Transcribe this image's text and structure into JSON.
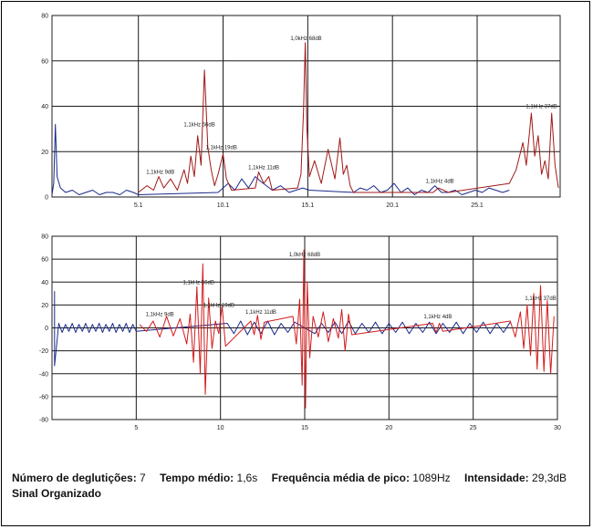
{
  "chart_data": [
    {
      "type": "line",
      "title": "",
      "xlabel": "",
      "ylabel": "",
      "xlim": [
        0,
        30
      ],
      "ylim": [
        0,
        80
      ],
      "x_ticks": [
        {
          "value": 5.1,
          "label": "5.1"
        },
        {
          "value": 10.1,
          "label": "10.1"
        },
        {
          "value": 15.1,
          "label": "15.1"
        },
        {
          "value": 20.1,
          "label": "20.1"
        },
        {
          "value": 25.1,
          "label": "25.1"
        }
      ],
      "y_ticks": [
        0,
        20,
        40,
        60,
        80
      ],
      "grid": true,
      "series": [
        {
          "color": "#1a2a8c",
          "x": [
            0,
            0.1,
            0.2,
            0.3,
            0.5,
            0.8,
            1.2,
            1.6,
            2.0,
            2.4,
            2.8,
            3.2,
            3.6,
            4.0,
            4.4,
            4.8,
            5.1,
            9.8,
            10.1,
            10.4,
            10.8,
            11.2,
            11.6,
            12.0,
            12.3,
            13.0,
            13.5,
            14.0,
            14.4,
            14.8,
            15.2,
            17.8,
            18.2,
            18.6,
            19.0,
            19.4,
            19.8,
            20.2,
            20.6,
            21.0,
            21.4,
            21.8,
            22.2,
            22.6,
            23.0,
            23.4,
            23.8,
            24.2,
            24.6,
            25.0,
            25.4,
            25.8,
            26.2,
            26.6,
            27.0
          ],
          "y": [
            1,
            6,
            32,
            9,
            4,
            2,
            3,
            1,
            2,
            3,
            1,
            2,
            2,
            1,
            3,
            2,
            1,
            2,
            4,
            6,
            3,
            8,
            4,
            9,
            7,
            3,
            5,
            2,
            3,
            4,
            3,
            2,
            4,
            3,
            5,
            2,
            3,
            6,
            2,
            4,
            1,
            3,
            2,
            5,
            2,
            2,
            3,
            1,
            2,
            3,
            2,
            4,
            3,
            2,
            3
          ]
        },
        {
          "color": "#a01818",
          "x": [
            5.1,
            5.6,
            6.0,
            6.3,
            6.6,
            7.0,
            7.4,
            7.8,
            8.0,
            8.2,
            8.4,
            8.6,
            8.8,
            9.0,
            9.2,
            9.4,
            9.6,
            9.8,
            10.1,
            10.3,
            10.6,
            12.0,
            12.2,
            12.5,
            12.8,
            13.0,
            14.5,
            14.7,
            14.85,
            14.95,
            15.05,
            15.2,
            15.5,
            15.9,
            16.3,
            16.7,
            17.0,
            17.2,
            17.4,
            17.6,
            17.8,
            22.5,
            22.8,
            23.1,
            23.4,
            27.0,
            27.4,
            27.8,
            28.0,
            28.3,
            28.5,
            28.7,
            28.9,
            29.1,
            29.3,
            29.5,
            29.7,
            29.9
          ],
          "y": [
            2,
            5,
            3,
            9,
            4,
            8,
            3,
            12,
            6,
            18,
            9,
            27,
            14,
            56,
            22,
            12,
            5,
            10,
            19,
            8,
            3,
            4,
            11,
            6,
            9,
            3,
            4,
            10,
            38,
            68,
            30,
            9,
            16,
            6,
            21,
            8,
            26,
            10,
            14,
            5,
            2,
            2,
            4,
            3,
            2,
            6,
            12,
            24,
            14,
            37,
            18,
            27,
            10,
            16,
            8,
            37,
            14,
            4
          ]
        }
      ],
      "annotations": [
        {
          "x": 6.4,
          "y": 9,
          "text": "1,1kHz 9dB"
        },
        {
          "x": 8.7,
          "y": 30,
          "text": "1,1kHz 56dB"
        },
        {
          "x": 10.0,
          "y": 20,
          "text": "1,1kHz 19dB"
        },
        {
          "x": 12.5,
          "y": 11,
          "text": "1,1kHz 11dB"
        },
        {
          "x": 15.0,
          "y": 68,
          "text": "1,0kHz 68dB"
        },
        {
          "x": 22.9,
          "y": 5,
          "text": "1,1kHz 4dB"
        },
        {
          "x": 28.9,
          "y": 38,
          "text": "1,1kHz 37dB"
        }
      ]
    },
    {
      "type": "line",
      "title": "",
      "xlabel": "",
      "ylabel": "",
      "xlim": [
        0,
        30
      ],
      "ylim": [
        -80,
        80
      ],
      "x_ticks": [
        {
          "value": 5,
          "label": "5"
        },
        {
          "value": 10,
          "label": "10"
        },
        {
          "value": 15,
          "label": "15"
        },
        {
          "value": 20,
          "label": "20"
        },
        {
          "value": 25,
          "label": "25"
        },
        {
          "value": 30,
          "label": "30"
        }
      ],
      "y_ticks": [
        -80,
        -60,
        -40,
        -20,
        0,
        20,
        40,
        60,
        80
      ],
      "grid": true,
      "series": [
        {
          "color": "#1a2a8c",
          "x": [
            0.15,
            0.15,
            0.4,
            0.6,
            0.8,
            1.0,
            1.2,
            1.4,
            1.6,
            1.8,
            2.0,
            2.2,
            2.4,
            2.6,
            2.8,
            3.0,
            3.2,
            3.4,
            3.6,
            3.8,
            4.0,
            4.2,
            4.4,
            4.6,
            4.8,
            5.0,
            10.4,
            10.8,
            11.2,
            11.6,
            12.0,
            12.4,
            12.8,
            13.2,
            13.6,
            14.0,
            14.4,
            15.6,
            16.0,
            16.4,
            16.8,
            17.2,
            17.6,
            18.0,
            18.4,
            18.8,
            19.2,
            19.6,
            20.0,
            20.4,
            20.8,
            21.2,
            21.6,
            22.0,
            22.4,
            22.8,
            23.2,
            23.6,
            24.0,
            24.4,
            24.8,
            25.2,
            25.6,
            26.0,
            26.4,
            26.8,
            27.2
          ],
          "y": [
            32,
            -33,
            4,
            -4,
            3,
            -3,
            4,
            -4,
            3,
            -3,
            4,
            -4,
            3,
            -3,
            4,
            -4,
            3,
            -3,
            4,
            -4,
            3,
            -3,
            4,
            -4,
            3,
            -3,
            4,
            -5,
            6,
            -6,
            5,
            -5,
            6,
            -6,
            4,
            -4,
            5,
            -5,
            4,
            -4,
            5,
            -5,
            6,
            -5,
            4,
            -4,
            5,
            -5,
            4,
            -4,
            5,
            -5,
            4,
            -4,
            5,
            -5,
            4,
            -4,
            5,
            -5,
            4,
            -4,
            5,
            -5,
            4,
            -4,
            5
          ]
        },
        {
          "color": "#d41b1b",
          "x": [
            5.2,
            5.6,
            6.0,
            6.4,
            6.8,
            7.2,
            7.6,
            8.0,
            8.2,
            8.4,
            8.6,
            8.8,
            8.95,
            9.1,
            9.3,
            9.5,
            9.7,
            9.9,
            10.1,
            10.3,
            11.8,
            12.0,
            12.2,
            12.4,
            12.6,
            14.3,
            14.5,
            14.7,
            14.85,
            14.95,
            15.05,
            15.15,
            15.3,
            15.5,
            15.8,
            16.1,
            16.4,
            16.7,
            17.0,
            17.2,
            17.4,
            17.6,
            17.8,
            22.6,
            22.8,
            23.0,
            23.2,
            27.2,
            27.5,
            27.8,
            28.0,
            28.2,
            28.4,
            28.6,
            28.8,
            29.0,
            29.2,
            29.4,
            29.6,
            29.8
          ],
          "y": [
            3,
            -3,
            6,
            -8,
            10,
            -7,
            8,
            -14,
            12,
            -30,
            36,
            -40,
            56,
            -58,
            26,
            -18,
            6,
            -5,
            19,
            -16,
            6,
            -6,
            11,
            -10,
            5,
            10,
            -14,
            25,
            -50,
            68,
            -70,
            40,
            -26,
            10,
            -8,
            14,
            -12,
            8,
            -9,
            16,
            -20,
            12,
            -6,
            4,
            -4,
            4,
            -3,
            6,
            -8,
            14,
            -18,
            20,
            -24,
            30,
            -36,
            37,
            -38,
            24,
            -40,
            10
          ]
        }
      ],
      "annotations": [
        {
          "x": 6.4,
          "y": 8,
          "text": "1,1kHz 9dB"
        },
        {
          "x": 8.7,
          "y": 36,
          "text": "1,1kHz 56dB"
        },
        {
          "x": 9.9,
          "y": 16,
          "text": "1,1kHz 19dB"
        },
        {
          "x": 12.4,
          "y": 10,
          "text": "1,1kHz 11dB"
        },
        {
          "x": 15.0,
          "y": 60,
          "text": "1,0kHz 68dB"
        },
        {
          "x": 22.9,
          "y": 6,
          "text": "1,1kHz 4dB"
        },
        {
          "x": 29.0,
          "y": 22,
          "text": "1,1kHz 37dB"
        }
      ]
    }
  ],
  "summary": {
    "swallows_label": "Número de deglutições:",
    "swallows_value": "7",
    "mean_time_label": "Tempo médio:",
    "mean_time_value": "1,6s",
    "peak_freq_label": "Frequência média de pico:",
    "peak_freq_value": "1089Hz",
    "intensity_label": "Intensidade:",
    "intensity_value": "29,3dB",
    "signal_label": "Sinal Organizado"
  }
}
